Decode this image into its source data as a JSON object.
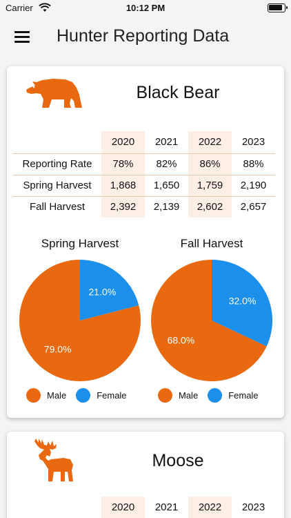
{
  "status_bar": {
    "carrier": "Carrier",
    "time": "10:12 PM"
  },
  "header": {
    "title": "Hunter Reporting Data"
  },
  "colors": {
    "male": "#e8690f",
    "female": "#1b8fea",
    "highlight": "#fdefe6"
  },
  "cards": {
    "bear": {
      "title": "Black Bear",
      "icon": "bear-icon",
      "years": [
        "2020",
        "2021",
        "2022",
        "2023"
      ],
      "rows": [
        {
          "label": "Reporting Rate",
          "values": [
            "78%",
            "82%",
            "86%",
            "88%"
          ]
        },
        {
          "label": "Spring Harvest",
          "values": [
            "1,868",
            "1,650",
            "1,759",
            "2,190"
          ]
        },
        {
          "label": "Fall Harvest",
          "values": [
            "2,392",
            "2,139",
            "2,602",
            "2,657"
          ]
        }
      ],
      "pies": {
        "spring": {
          "title": "Spring Harvest",
          "male_pct": 79.0,
          "female_pct": 21.0,
          "male_label": "79.0%",
          "female_label": "21.0%"
        },
        "fall": {
          "title": "Fall Harvest",
          "male_pct": 68.0,
          "female_pct": 32.0,
          "male_label": "68.0%",
          "female_label": "32.0%"
        }
      },
      "legend": {
        "male": "Male",
        "female": "Female"
      }
    },
    "moose": {
      "title": "Moose",
      "icon": "moose-icon",
      "years": [
        "2020",
        "2021",
        "2022",
        "2023"
      ]
    }
  }
}
